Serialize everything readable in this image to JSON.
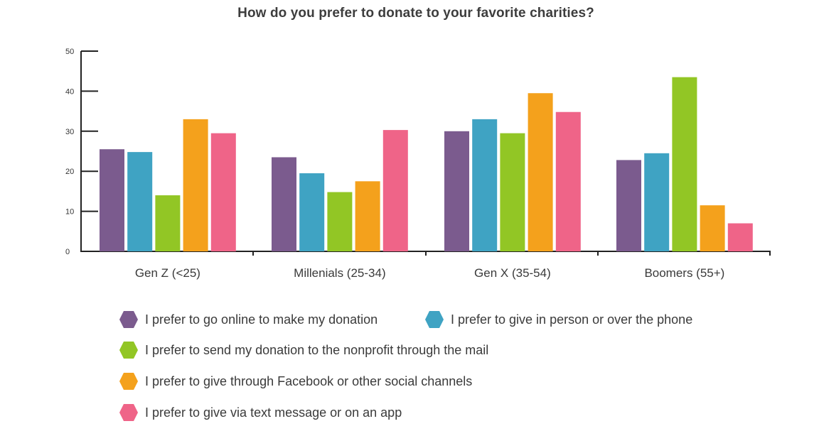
{
  "chart_data": {
    "type": "bar",
    "title": "How do you prefer to donate to your favorite charities?",
    "categories": [
      "Gen Z (<25)",
      "Millenials (25-34)",
      "Gen X (35-54)",
      "Boomers (55+)"
    ],
    "series": [
      {
        "name": "I prefer to go online to make my donation",
        "color": "#7b5b8e",
        "values": [
          25.5,
          23.5,
          30,
          22.8
        ]
      },
      {
        "name": "I prefer to give in person or over the phone",
        "color": "#3fa3c3",
        "values": [
          24.8,
          19.5,
          33,
          24.5
        ]
      },
      {
        "name": "I prefer to send my donation to the nonprofit through the mail",
        "color": "#92c625",
        "values": [
          14,
          14.8,
          29.5,
          43.5
        ]
      },
      {
        "name": "I prefer to give through Facebook or other social channels",
        "color": "#f4a11c",
        "values": [
          33,
          17.5,
          39.5,
          11.5
        ]
      },
      {
        "name": "I prefer to give via text message or on an app",
        "color": "#ef6488",
        "values": [
          29.5,
          30.3,
          34.8,
          7
        ]
      }
    ],
    "ylim": [
      0,
      50
    ],
    "yticks": [
      "0",
      "10",
      "20",
      "30",
      "40",
      "50"
    ],
    "grid": false,
    "legend_position": "bottom"
  }
}
